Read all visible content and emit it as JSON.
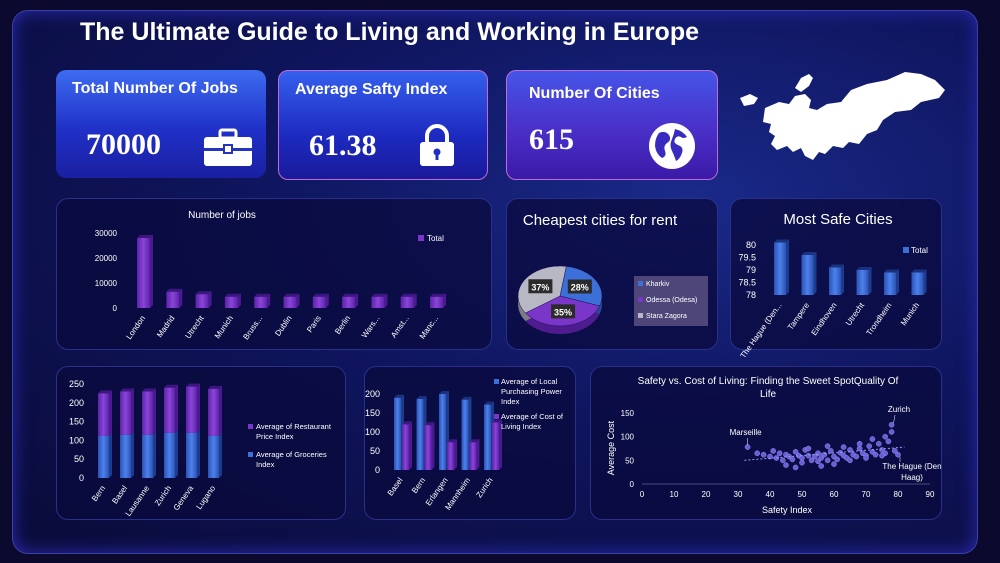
{
  "title": "The Ultimate Guide to Living and Working in Europe",
  "kpis": [
    {
      "label": "Total Number Of Jobs",
      "value": "70000",
      "icon": "briefcase-icon"
    },
    {
      "label": "Average Safty Index",
      "value": "61.38",
      "icon": "lock-icon"
    },
    {
      "label": "Number Of Cities",
      "value": "615",
      "icon": "globe-icon"
    }
  ],
  "colors": {
    "purple": "#7a35c9",
    "blue": "#3c6fd8",
    "gray": "#b8b8c4",
    "scatter": "#6b5fd8"
  },
  "chart_data": [
    {
      "id": "jobs",
      "type": "bar",
      "title": "Number of jobs",
      "categories": [
        "London",
        "Madrid",
        "Utrecht",
        "Munich",
        "Bruss...",
        "Dublin",
        "Paris",
        "Berlin",
        "Wars...",
        "Amst...",
        "Manc..."
      ],
      "series": [
        {
          "name": "Total",
          "values": [
            28000,
            6500,
            5500,
            4500,
            4500,
            4500,
            4500,
            4500,
            4500,
            4500,
            4500
          ]
        }
      ],
      "ylim": [
        0,
        30000
      ],
      "yticks": [
        "0",
        "10000",
        "20000",
        "30000"
      ],
      "legend": "top-right"
    },
    {
      "id": "rent",
      "type": "pie",
      "title": "Cheapest cities for rent",
      "categories": [
        "Kharkiv",
        "Odessa (Odesa)",
        "Stara Zagora"
      ],
      "values": [
        28,
        35,
        37
      ],
      "labels": [
        "28%",
        "35%",
        "37%"
      ],
      "legend": "right"
    },
    {
      "id": "safe",
      "type": "bar",
      "title": "Most Safe Cities",
      "categories": [
        "The Hague (Den...",
        "Tampere",
        "Eindhoven",
        "Utrecht",
        "Trondheim",
        "Munich"
      ],
      "series": [
        {
          "name": "Total",
          "values": [
            80.1,
            79.6,
            79.1,
            79.0,
            78.9,
            78.9
          ]
        }
      ],
      "ylim": [
        78,
        80
      ],
      "yticks": [
        "78",
        "78.5",
        "79",
        "79.5",
        "80"
      ],
      "legend": "top-right"
    },
    {
      "id": "restaurant",
      "type": "bar",
      "stacked": true,
      "categories": [
        "Bern",
        "Basel",
        "Lausanne",
        "Zurich",
        "Geneva",
        "Lugano"
      ],
      "series": [
        {
          "name": "Average of Restaurant Price Index",
          "values": [
            113,
            115,
            115,
            120,
            123,
            125
          ]
        },
        {
          "name": "Average of Groceries Index",
          "values": [
            112,
            115,
            115,
            120,
            120,
            112
          ]
        }
      ],
      "ylim": [
        0,
        250
      ],
      "yticks": [
        "0",
        "50",
        "100",
        "150",
        "200",
        "250"
      ],
      "legend": "right"
    },
    {
      "id": "power",
      "type": "bar",
      "categories": [
        "Basel",
        "Bern",
        "Erlangen",
        "Mannheim",
        "Zurich"
      ],
      "series": [
        {
          "name": "Average of Local Purchasing Power Index",
          "values": [
            190,
            187,
            200,
            185,
            172
          ]
        },
        {
          "name": "Average of Cost of Living Index",
          "values": [
            120,
            118,
            73,
            73,
            125
          ]
        }
      ],
      "ylim": [
        0,
        200
      ],
      "yticks": [
        "0",
        "50",
        "100",
        "150",
        "200"
      ],
      "legend": "top-right"
    },
    {
      "id": "scatter",
      "type": "scatter",
      "title": "Safety vs. Cost of Living: Finding the Sweet SpotQuality Of Life",
      "xlabel": "Safety Index",
      "ylabel": "Average Cost",
      "xlim": [
        0,
        90
      ],
      "ylim": [
        0,
        150
      ],
      "xticks": [
        "0",
        "10",
        "20",
        "30",
        "40",
        "50",
        "60",
        "70",
        "80",
        "90"
      ],
      "yticks": [
        "0",
        "50",
        "100",
        "150"
      ],
      "annotations": [
        {
          "text": "Marseille",
          "x": 33,
          "y": 78
        },
        {
          "text": "Zurich",
          "x": 78,
          "y": 125
        },
        {
          "text": "The Hague (Den",
          "x": 80,
          "y": 62
        },
        {
          "text": "Haag)",
          "x": 80,
          "y": 62
        }
      ],
      "points": [
        [
          33,
          78
        ],
        [
          36,
          65
        ],
        [
          38,
          62
        ],
        [
          40,
          58
        ],
        [
          41,
          70
        ],
        [
          42,
          55
        ],
        [
          43,
          65
        ],
        [
          44,
          50
        ],
        [
          45,
          62
        ],
        [
          46,
          58
        ],
        [
          47,
          52
        ],
        [
          48,
          68
        ],
        [
          49,
          60
        ],
        [
          50,
          55
        ],
        [
          51,
          72
        ],
        [
          52,
          60
        ],
        [
          53,
          50
        ],
        [
          54,
          58
        ],
        [
          55,
          65
        ],
        [
          56,
          55
        ],
        [
          57,
          62
        ],
        [
          58,
          50
        ],
        [
          59,
          70
        ],
        [
          60,
          58
        ],
        [
          61,
          52
        ],
        [
          62,
          66
        ],
        [
          63,
          60
        ],
        [
          64,
          55
        ],
        [
          65,
          72
        ],
        [
          66,
          62
        ],
        [
          67,
          58
        ],
        [
          68,
          75
        ],
        [
          69,
          65
        ],
        [
          70,
          60
        ],
        [
          71,
          80
        ],
        [
          72,
          68
        ],
        [
          73,
          62
        ],
        [
          74,
          85
        ],
        [
          75,
          72
        ],
        [
          76,
          65
        ],
        [
          77,
          90
        ],
        [
          78,
          125
        ],
        [
          78,
          110
        ],
        [
          79,
          70
        ],
        [
          80,
          62
        ],
        [
          45,
          40
        ],
        [
          50,
          45
        ],
        [
          55,
          48
        ],
        [
          60,
          42
        ],
        [
          65,
          50
        ],
        [
          70,
          55
        ],
        [
          75,
          60
        ],
        [
          52,
          75
        ],
        [
          58,
          80
        ],
        [
          63,
          78
        ],
        [
          68,
          85
        ],
        [
          72,
          95
        ],
        [
          76,
          100
        ],
        [
          48,
          35
        ],
        [
          56,
          38
        ]
      ]
    }
  ]
}
